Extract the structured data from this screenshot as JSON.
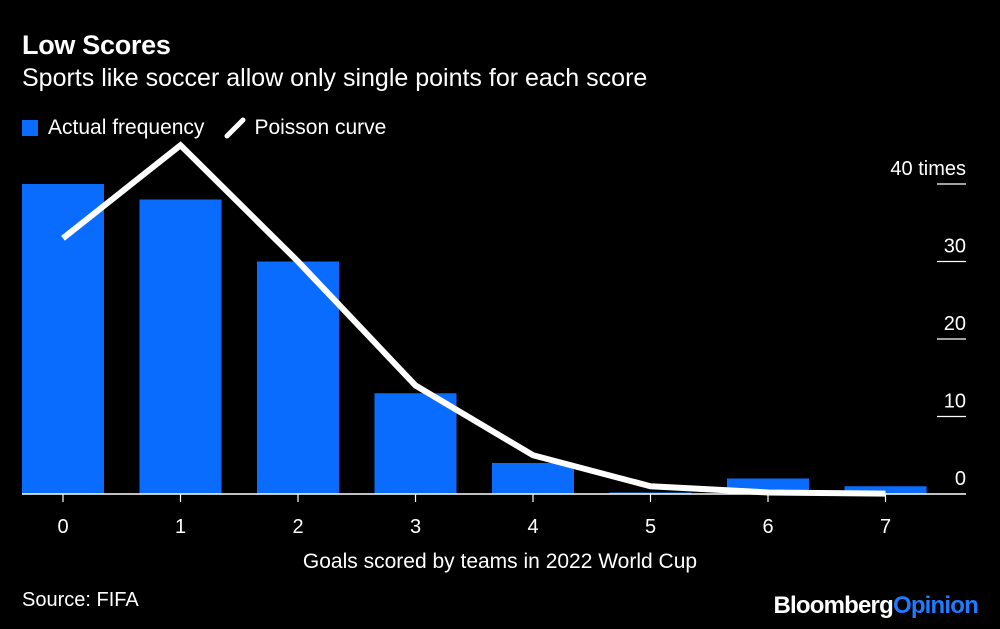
{
  "header": {
    "title": "Low Scores",
    "subtitle": "Sports like soccer allow only single points for each score"
  },
  "legend": {
    "bar_label": "Actual frequency",
    "line_label": "Poisson curve"
  },
  "footer": {
    "source": "Source: FIFA",
    "brand_part1": "Bloomberg",
    "brand_part2": "Opinion"
  },
  "colors": {
    "bar": "#0a6cff",
    "line": "#ffffff",
    "background": "#000000",
    "brand_accent": "#1f7bff"
  },
  "chart_data": {
    "type": "bar",
    "title": "Low Scores",
    "subtitle": "Sports like soccer allow only single points for each score",
    "xlabel": "Goals scored by teams in 2022 World Cup",
    "ylabel": "",
    "categories": [
      "0",
      "1",
      "2",
      "3",
      "4",
      "5",
      "6",
      "7"
    ],
    "ylim": [
      0,
      40
    ],
    "yticks": [
      0,
      10,
      20,
      30,
      40
    ],
    "ytick_labels": [
      "0",
      "10",
      "20",
      "30",
      "40 times"
    ],
    "series": [
      {
        "name": "Actual frequency",
        "type": "bar",
        "values": [
          40,
          38,
          30,
          13,
          4,
          0.2,
          2,
          1
        ]
      },
      {
        "name": "Poisson curve",
        "type": "line",
        "values": [
          33,
          45,
          30,
          14,
          5,
          1,
          0.2,
          0.05
        ]
      }
    ],
    "legend_position": "top-left",
    "grid": false
  }
}
